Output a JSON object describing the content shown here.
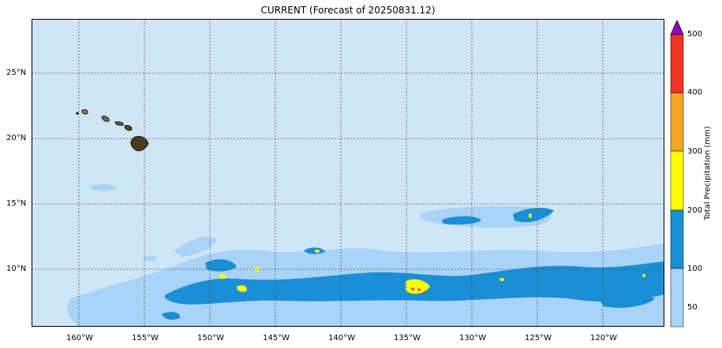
{
  "title": "CURRENT (Forecast of 20250831.12)",
  "map": {
    "background_color": "#cfe6f6",
    "gridline_color": "#555555",
    "lon_labels": [
      "160°W",
      "155°W",
      "150°W",
      "145°W",
      "140°W",
      "135°W",
      "130°W",
      "125°W",
      "120°W"
    ],
    "lat_labels": [
      "25°N",
      "20°N",
      "15°N",
      "10°N"
    ],
    "islands": [
      "Kauai",
      "Oahu",
      "Molokai",
      "Maui",
      "Hawaii"
    ]
  },
  "colorbar": {
    "label": "Total Precipitation (mm)",
    "ticks": [
      "50",
      "100",
      "200",
      "300",
      "400",
      "500"
    ],
    "levels": [
      {
        "from": 50,
        "to": 100,
        "color": "#a9d3f7"
      },
      {
        "from": 100,
        "to": 200,
        "color": "#1a8fd6"
      },
      {
        "from": 200,
        "to": 300,
        "color": "#ffff00"
      },
      {
        "from": 300,
        "to": 400,
        "color": "#f5a623"
      },
      {
        "from": 400,
        "to": 500,
        "color": "#ee3322"
      }
    ],
    "extend_color": "#8a00c8"
  }
}
